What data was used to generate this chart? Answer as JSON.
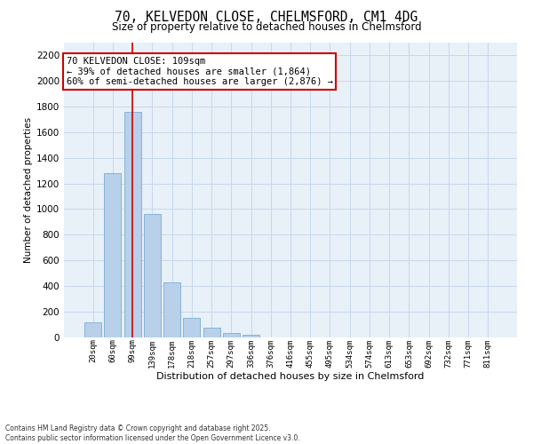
{
  "title_line1": "70, KELVEDON CLOSE, CHELMSFORD, CM1 4DG",
  "title_line2": "Size of property relative to detached houses in Chelmsford",
  "xlabel": "Distribution of detached houses by size in Chelmsford",
  "ylabel": "Number of detached properties",
  "bar_labels": [
    "20sqm",
    "60sqm",
    "99sqm",
    "139sqm",
    "178sqm",
    "218sqm",
    "257sqm",
    "297sqm",
    "336sqm",
    "376sqm",
    "416sqm",
    "455sqm",
    "495sqm",
    "534sqm",
    "574sqm",
    "613sqm",
    "653sqm",
    "692sqm",
    "732sqm",
    "771sqm",
    "811sqm"
  ],
  "bar_values": [
    120,
    1280,
    1760,
    960,
    430,
    150,
    75,
    35,
    20,
    0,
    0,
    0,
    0,
    0,
    0,
    0,
    0,
    0,
    0,
    0,
    0
  ],
  "bar_color": "#b8d0ea",
  "bar_edgecolor": "#7aadd4",
  "vline_x": 2.0,
  "vline_color": "#cc0000",
  "annotation_text": "70 KELVEDON CLOSE: 109sqm\n← 39% of detached houses are smaller (1,864)\n60% of semi-detached houses are larger (2,876) →",
  "annotation_box_color": "#cc0000",
  "ylim": [
    0,
    2300
  ],
  "yticks": [
    0,
    200,
    400,
    600,
    800,
    1000,
    1200,
    1400,
    1600,
    1800,
    2000,
    2200
  ],
  "grid_color": "#c8d8ee",
  "bg_color": "#e8f0f8",
  "footer_line1": "Contains HM Land Registry data © Crown copyright and database right 2025.",
  "footer_line2": "Contains public sector information licensed under the Open Government Licence v3.0."
}
